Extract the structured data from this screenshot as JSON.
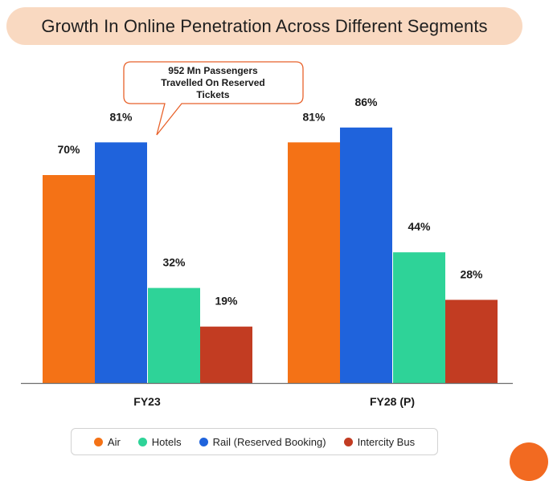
{
  "title": "Growth In Online Penetration Across Different Segments",
  "callout": {
    "lines": [
      "952 Mn Passengers",
      "Travelled On Reserved",
      "Tickets"
    ]
  },
  "chart_data": {
    "type": "bar",
    "categories": [
      "FY23",
      "FY28 (P)"
    ],
    "series": [
      {
        "name": "Air",
        "color": "#f47216",
        "values": [
          70,
          81
        ]
      },
      {
        "name": "Rail (Reserved Booking)",
        "color": "#1f63dc",
        "values": [
          81,
          86
        ]
      },
      {
        "name": "Hotels",
        "color": "#2ed398",
        "values": [
          32,
          44
        ]
      },
      {
        "name": "Intercity Bus",
        "color": "#c23c22",
        "values": [
          19,
          28
        ]
      }
    ],
    "value_suffix": "%",
    "ylim": [
      0,
      100
    ],
    "grid": false,
    "legend_placement": "bottom",
    "legend_order": [
      "Air",
      "Hotels",
      "Rail (Reserved Booking)",
      "Intercity Bus"
    ]
  }
}
